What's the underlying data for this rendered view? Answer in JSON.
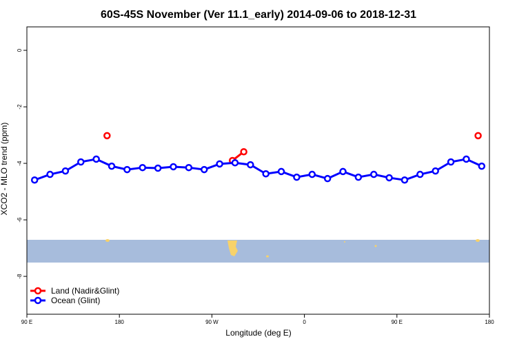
{
  "chart_data": {
    "type": "line",
    "title": "60S-45S November (Ver 11.1_early)   2014-09-06 to 2018-12-31",
    "xlabel": "Longitude (deg E)",
    "ylabel": "XCO2 - MLO trend (ppm)",
    "xlim": [
      90,
      540
    ],
    "ylim": [
      0.83,
      -9.34
    ],
    "xticks": [
      {
        "value": 90,
        "label": "90 E"
      },
      180,
      {
        "value": 270,
        "label": "90 W"
      },
      {
        "value": 360,
        "label": "0"
      },
      {
        "value": 450,
        "label": "90 E"
      },
      {
        "value": 540,
        "label": "180"
      }
    ],
    "yticks": [
      0,
      -2,
      -4,
      -6,
      -8
    ],
    "legend": "bottom-left",
    "series": [
      {
        "name": "Land (Nadir&Glint)",
        "color": "#ff0000",
        "x": [
          168,
          null,
          290,
          301,
          null,
          529
        ],
        "values": [
          -3.02,
          null,
          -3.9,
          -3.59,
          null,
          -3.02
        ]
      },
      {
        "name": "Ocean (Glint)",
        "color": "#0000ff",
        "x": [
          97.5,
          112.5,
          127.5,
          142.5,
          157.5,
          172.5,
          187.5,
          202.5,
          217.5,
          232.5,
          247.5,
          262.5,
          277.5,
          292.5,
          307.5,
          322.5,
          337.5,
          352.5,
          367.5,
          382.5,
          397.5,
          412.5,
          427.5,
          442.5,
          457.5,
          472.5,
          487.5,
          502.5,
          517.5,
          532.5
        ],
        "values": [
          -4.59,
          -4.39,
          -4.27,
          -3.95,
          -3.85,
          -4.1,
          -4.22,
          -4.15,
          -4.17,
          -4.12,
          -4.15,
          -4.22,
          -4.02,
          -3.98,
          -4.05,
          -4.37,
          -4.29,
          -4.49,
          -4.39,
          -4.54,
          -4.29,
          -4.49,
          -4.39,
          -4.51,
          -4.59,
          -4.39,
          -4.27,
          -3.95,
          -3.85,
          -4.1
        ]
      }
    ]
  }
}
